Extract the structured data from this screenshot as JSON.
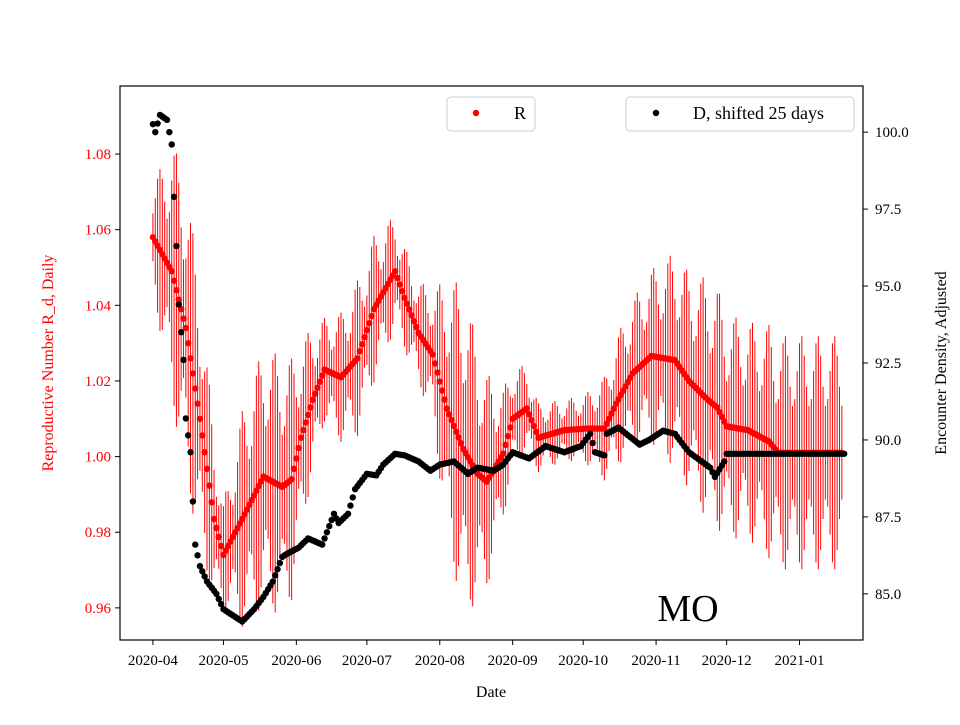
{
  "chart_data": {
    "type": "scatter",
    "xlabel": "Date",
    "ylabel_left": "Reproductive Number R_d, Daily",
    "ylabel_right": "Encounter Density, Adjusted",
    "annotation": "MO",
    "x_ticks": [
      "2020-04",
      "2020-05",
      "2020-06",
      "2020-07",
      "2020-08",
      "2020-09",
      "2020-10",
      "2020-11",
      "2020-12",
      "2021-01"
    ],
    "x_tick_dates": [
      "2020-04-01",
      "2020-05-01",
      "2020-06-01",
      "2020-07-01",
      "2020-08-01",
      "2020-09-01",
      "2020-10-01",
      "2020-11-01",
      "2020-12-01",
      "2021-01-01"
    ],
    "xlim": [
      "2020-03-18",
      "2021-01-28"
    ],
    "y_left_ticks": [
      "0.96",
      "0.98",
      "1.00",
      "1.02",
      "1.04",
      "1.06",
      "1.08"
    ],
    "y_left_lim": [
      0.9515,
      1.098
    ],
    "y_right_ticks": [
      "85.0",
      "87.5",
      "90.0",
      "92.5",
      "95.0",
      "97.5",
      "100.0"
    ],
    "y_right_lim": [
      83.5,
      101.5
    ],
    "legend": {
      "r_label": "R",
      "d_label": "D, shifted 25 days",
      "placement": "top-right"
    },
    "colors": {
      "R": "#ff0000",
      "D": "#000000",
      "left_axis_text": "#ff0000"
    },
    "series": [
      {
        "name": "R",
        "axis": "left",
        "points_date_value_err": [
          [
            "2020-04-01",
            1.058,
            0.012
          ],
          [
            "2020-04-09",
            1.049,
            0.03
          ],
          [
            "2020-04-15",
            1.034,
            0.035
          ],
          [
            "2020-04-21",
            1.01,
            0.03
          ],
          [
            "2020-04-27",
            0.9835,
            0.02
          ],
          [
            "2020-05-01",
            0.974,
            0.012
          ],
          [
            "2020-05-09",
            0.9835,
            0.025
          ],
          [
            "2020-05-18",
            0.9947,
            0.03
          ],
          [
            "2020-05-26",
            0.992,
            0.03
          ],
          [
            "2020-05-30",
            0.994,
            0.028
          ],
          [
            "2020-06-03",
            1.005,
            0.022
          ],
          [
            "2020-06-08",
            1.015,
            0.017
          ],
          [
            "2020-06-13",
            1.023,
            0.012
          ],
          [
            "2020-06-20",
            1.021,
            0.015
          ],
          [
            "2020-06-27",
            1.026,
            0.018
          ],
          [
            "2020-07-04",
            1.039,
            0.017
          ],
          [
            "2020-07-13",
            1.049,
            0.013
          ],
          [
            "2020-07-17",
            1.042,
            0.012
          ],
          [
            "2020-07-23",
            1.0327,
            0.012
          ],
          [
            "2020-07-29",
            1.027,
            0.015
          ],
          [
            "2020-08-04",
            1.0127,
            0.03
          ],
          [
            "2020-08-11",
            1.002,
            0.038
          ],
          [
            "2020-08-17",
            0.9955,
            0.03
          ],
          [
            "2020-08-21",
            0.9934,
            0.025
          ],
          [
            "2020-08-28",
            1.0008,
            0.015
          ],
          [
            "2020-09-01",
            1.01,
            0.012
          ],
          [
            "2020-09-07",
            1.0127,
            0.01
          ],
          [
            "2020-09-12",
            1.005,
            0.008
          ],
          [
            "2020-09-23",
            1.007,
            0.007
          ],
          [
            "2020-10-02",
            1.0074,
            0.008
          ],
          [
            "2020-10-10",
            1.0074,
            0.012
          ],
          [
            "2020-10-15",
            1.014,
            0.015
          ],
          [
            "2020-10-22",
            1.022,
            0.017
          ],
          [
            "2020-10-30",
            1.0266,
            0.02
          ],
          [
            "2020-11-09",
            1.0255,
            0.025
          ],
          [
            "2020-11-15",
            1.02,
            0.025
          ],
          [
            "2020-11-23",
            1.015,
            0.028
          ],
          [
            "2020-11-27",
            1.013,
            0.028
          ],
          [
            "2020-12-01",
            1.008,
            0.026
          ],
          [
            "2020-12-10",
            1.007,
            0.025
          ],
          [
            "2020-12-19",
            1.004,
            0.027
          ],
          [
            "2020-12-23",
            1.001,
            0.027
          ],
          [
            "2021-01-19",
            1.001,
            0.027
          ]
        ]
      },
      {
        "name": "D, shifted 25 days",
        "axis": "right",
        "points_date_value": [
          [
            "2020-04-01",
            100.26
          ],
          [
            "2020-04-02",
            100.0
          ],
          [
            "2020-04-04",
            100.56
          ],
          [
            "2020-04-07",
            100.4
          ],
          [
            "2020-04-09",
            99.6
          ],
          [
            "2020-04-10",
            97.9
          ],
          [
            "2020-04-11",
            96.3
          ],
          [
            "2020-04-12",
            94.4
          ],
          [
            "2020-04-14",
            92.6
          ],
          [
            "2020-04-15",
            90.7
          ],
          [
            "2020-04-17",
            89.6
          ],
          [
            "2020-04-18",
            88.0
          ],
          [
            "2020-04-19",
            86.6
          ],
          [
            "2020-04-21",
            85.9
          ],
          [
            "2020-04-24",
            85.4
          ],
          [
            "2020-04-28",
            85.0
          ],
          [
            "2020-05-01",
            84.5
          ],
          [
            "2020-05-05",
            84.3
          ],
          [
            "2020-05-09",
            84.1
          ],
          [
            "2020-05-14",
            84.5
          ],
          [
            "2020-05-18",
            84.9
          ],
          [
            "2020-05-22",
            85.4
          ],
          [
            "2020-05-26",
            86.2
          ],
          [
            "2020-05-28",
            86.3
          ],
          [
            "2020-06-02",
            86.5
          ],
          [
            "2020-06-06",
            86.8
          ],
          [
            "2020-06-12",
            86.6
          ],
          [
            "2020-06-17",
            87.6
          ],
          [
            "2020-06-19",
            87.3
          ],
          [
            "2020-06-23",
            87.6
          ],
          [
            "2020-06-26",
            88.4
          ],
          [
            "2020-07-01",
            88.9
          ],
          [
            "2020-07-05",
            88.85
          ],
          [
            "2020-07-08",
            89.2
          ],
          [
            "2020-07-13",
            89.55
          ],
          [
            "2020-07-17",
            89.5
          ],
          [
            "2020-07-23",
            89.3
          ],
          [
            "2020-07-28",
            89.0
          ],
          [
            "2020-08-01",
            89.2
          ],
          [
            "2020-08-07",
            89.3
          ],
          [
            "2020-08-13",
            88.9
          ],
          [
            "2020-08-17",
            89.1
          ],
          [
            "2020-08-24",
            89.0
          ],
          [
            "2020-08-28",
            89.2
          ],
          [
            "2020-09-01",
            89.6
          ],
          [
            "2020-09-08",
            89.4
          ],
          [
            "2020-09-15",
            89.8
          ],
          [
            "2020-09-23",
            89.6
          ],
          [
            "2020-09-30",
            89.8
          ],
          [
            "2020-10-04",
            90.2
          ],
          [
            "2020-10-06",
            89.6
          ],
          [
            "2020-10-10",
            89.5
          ],
          [
            "2020-10-11",
            90.2
          ],
          [
            "2020-10-16",
            90.4
          ],
          [
            "2020-10-25",
            89.85
          ],
          [
            "2020-10-29",
            90.0
          ],
          [
            "2020-11-04",
            90.3
          ],
          [
            "2020-11-09",
            90.2
          ],
          [
            "2020-11-15",
            89.6
          ],
          [
            "2020-11-24",
            89.1
          ],
          [
            "2020-11-26",
            88.8
          ],
          [
            "2020-11-30",
            89.3
          ],
          [
            "2020-12-01",
            89.55
          ],
          [
            "2021-01-20",
            89.55
          ]
        ]
      }
    ]
  }
}
